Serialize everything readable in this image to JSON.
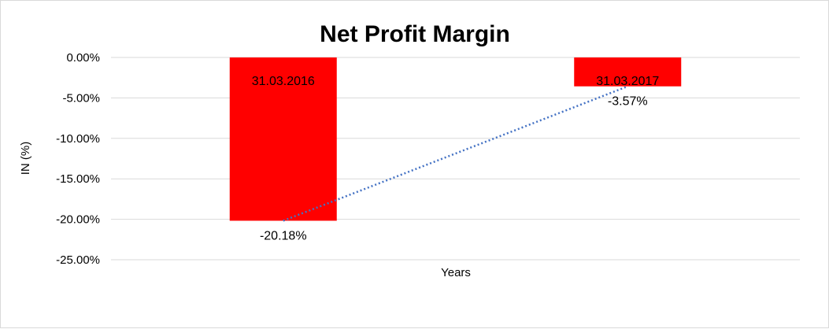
{
  "chart_data": {
    "type": "bar",
    "title": "Net Profit Margin",
    "xlabel": "Years",
    "ylabel": "IN (%)",
    "categories": [
      "31.03.2016",
      "31.03.2017"
    ],
    "values": [
      -20.18,
      -3.57
    ],
    "data_labels": [
      "-20.18%",
      "-3.57%"
    ],
    "ylim": [
      -25,
      0
    ],
    "yticks": [
      0,
      -5,
      -10,
      -15,
      -20,
      -25
    ],
    "ytick_labels": [
      "0.00%",
      "-5.00%",
      "-10.00%",
      "-15.00%",
      "-20.00%",
      "-25.00%"
    ],
    "grid": true,
    "legend": "none",
    "trendline": "linear dotted",
    "colors": {
      "bar": "#ff0000",
      "trendline": "#4472c4",
      "grid": "#d9d9d9"
    }
  }
}
